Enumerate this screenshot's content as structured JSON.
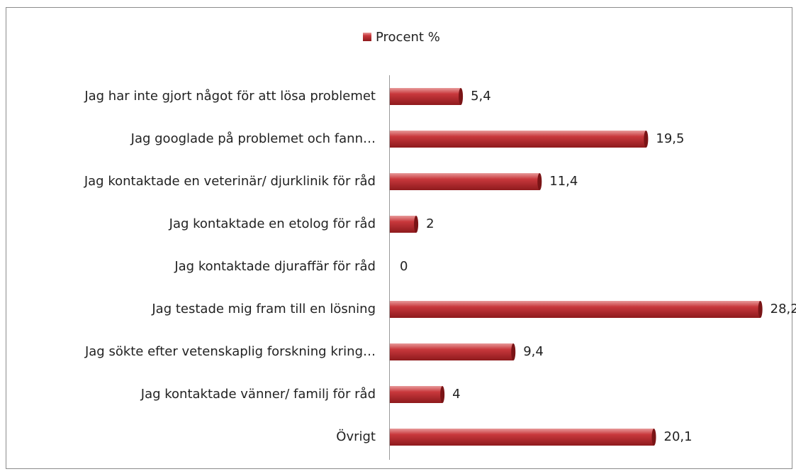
{
  "chart_data": {
    "type": "bar",
    "orientation": "horizontal",
    "legend": "top",
    "series": [
      {
        "name": "Procent %",
        "color": "#c0282d",
        "values": [
          5.4,
          19.5,
          11.4,
          2,
          0,
          28.2,
          9.4,
          4,
          20.1
        ],
        "value_labels": [
          "5,4",
          "19,5",
          "11,4",
          "2",
          "0",
          "28,2",
          "9,4",
          "4",
          "20,1"
        ]
      }
    ],
    "categories": [
      "Jag har inte gjort något för att lösa problemet",
      "Jag googlade på problemet och fann…",
      "Jag kontaktade en veterinär/ djurklinik för råd",
      "Jag kontaktade en etolog för råd",
      "Jag kontaktade djuraffär för råd",
      "Jag testade mig fram till en lösning",
      "Jag sökte efter vetenskaplig forskning kring…",
      "Jag kontaktade vänner/ familj för råd",
      "Övrigt"
    ],
    "xlim": [
      0,
      30
    ]
  }
}
